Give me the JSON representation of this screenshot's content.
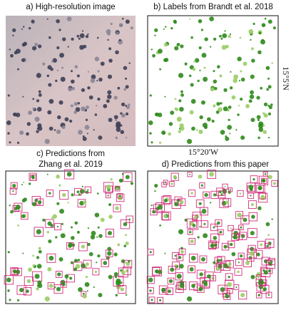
{
  "panels": [
    {
      "title": "a) High-resolution image"
    },
    {
      "title": "b) Labels from Brandt et al. 2018",
      "latitude_label": "15°5'N",
      "longitude_label": "15°20'W"
    },
    {
      "title_lines": [
        "c) Predictions from",
        "Zhang et al. 2019"
      ]
    },
    {
      "title": "d) Predictions from this paper"
    }
  ]
}
